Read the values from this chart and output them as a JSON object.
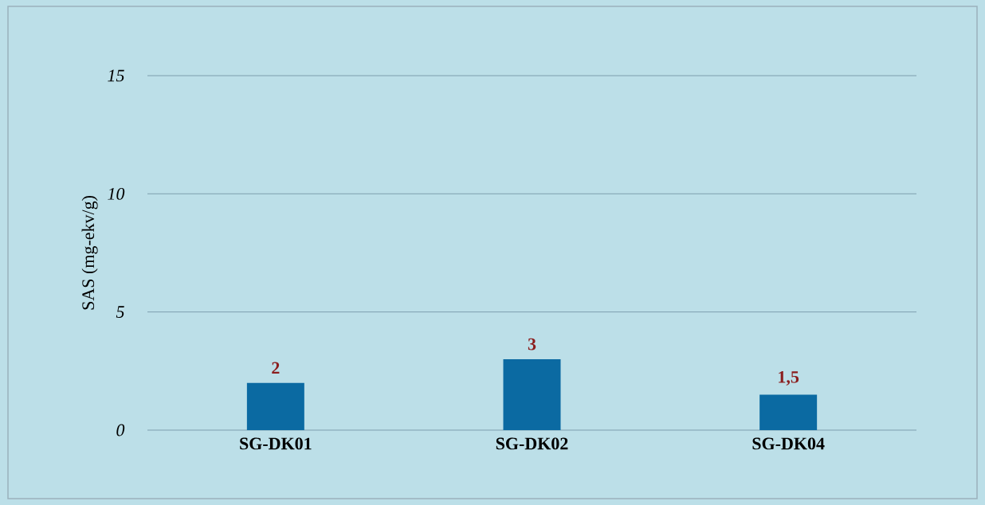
{
  "chart_data": {
    "type": "bar",
    "ylabel": "SAS (mg-ekv/g)",
    "categories": [
      "SG-DK01",
      "SG-DK02",
      "SG-DK04"
    ],
    "values": [
      2,
      3,
      1.5
    ],
    "value_labels": [
      "2",
      "3",
      "1,5"
    ],
    "color": "#0b6aa2",
    "ylim": [
      0,
      15
    ],
    "yticks": [
      0,
      5,
      10,
      15
    ],
    "grid": "y"
  }
}
